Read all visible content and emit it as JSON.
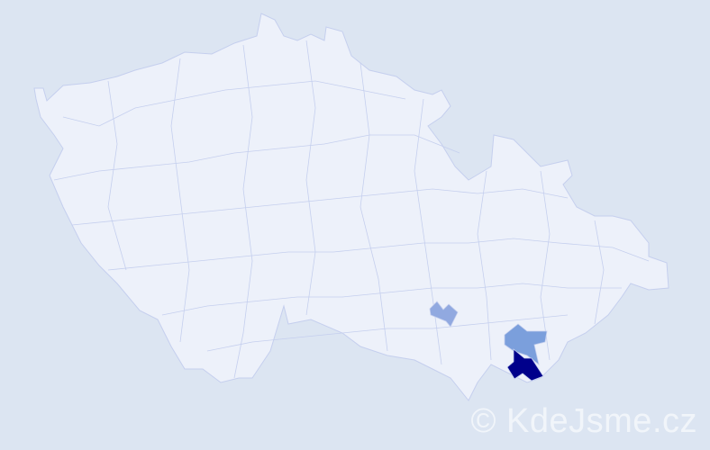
{
  "map": {
    "colors": {
      "background": "#dce5f2",
      "district_default": "#edf1fa",
      "district_border": "#c5cfee",
      "level_low": "#91a9e0",
      "level_mid": "#7b9fdc",
      "level_high": "#00008b"
    },
    "highlighted_districts": [
      {
        "level": "low"
      },
      {
        "level": "mid"
      },
      {
        "level": "high"
      }
    ]
  },
  "watermark": "© KdeJsme.cz"
}
